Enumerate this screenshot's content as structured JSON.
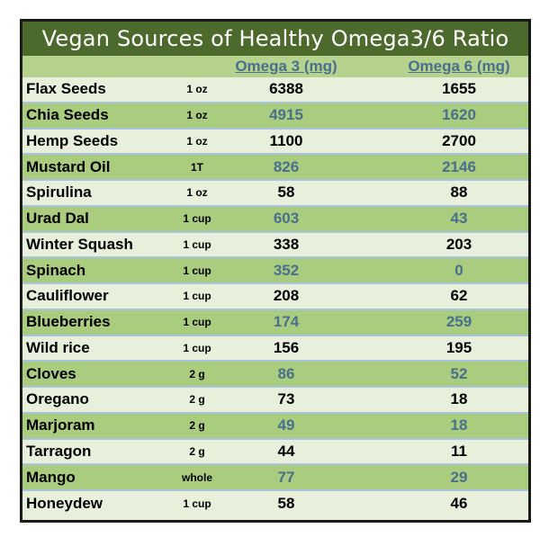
{
  "title": "Vegan Sources of Healthy Omega3/6 Ratio",
  "columns": {
    "unit": "",
    "omega3": "Omega 3 (mg)",
    "omega6": "Omega 6 (mg)"
  },
  "rows": [
    {
      "name": "Flax Seeds",
      "unit": "1 oz",
      "omega3": "6388",
      "omega6": "1655"
    },
    {
      "name": "Chia Seeds",
      "unit": "1 oz",
      "omega3": "4915",
      "omega6": "1620"
    },
    {
      "name": "Hemp Seeds",
      "unit": "1 oz",
      "omega3": "1100",
      "omega6": "2700"
    },
    {
      "name": "Mustard Oil",
      "unit": "1T",
      "omega3": "826",
      "omega6": "2146"
    },
    {
      "name": "Spirulina",
      "unit": "1 oz",
      "omega3": "58",
      "omega6": "88"
    },
    {
      "name": "Urad Dal",
      "unit": "1 cup",
      "omega3": "603",
      "omega6": "43"
    },
    {
      "name": "Winter Squash",
      "unit": "1 cup",
      "omega3": "338",
      "omega6": "203"
    },
    {
      "name": "Spinach",
      "unit": "1 cup",
      "omega3": "352",
      "omega6": "0"
    },
    {
      "name": "Cauliflower",
      "unit": "1 cup",
      "omega3": "208",
      "omega6": "62"
    },
    {
      "name": "Blueberries",
      "unit": "1 cup",
      "omega3": "174",
      "omega6": "259"
    },
    {
      "name": "Wild rice",
      "unit": "1 cup",
      "omega3": "156",
      "omega6": "195"
    },
    {
      "name": "Cloves",
      "unit": "2 g",
      "omega3": "86",
      "omega6": "52"
    },
    {
      "name": "Oregano",
      "unit": "2 g",
      "omega3": "73",
      "omega6": "18"
    },
    {
      "name": "Marjoram",
      "unit": "2 g",
      "omega3": "49",
      "omega6": "18"
    },
    {
      "name": "Tarragon",
      "unit": "2 g",
      "omega3": "44",
      "omega6": "11"
    },
    {
      "name": "Mango",
      "unit": "whole",
      "omega3": "77",
      "omega6": "29"
    },
    {
      "name": "Honeydew",
      "unit": "1 cup",
      "omega3": "58",
      "omega6": "46"
    }
  ],
  "colors": {
    "title_bg": "#4b6a2c",
    "header_bg": "#b6d28f",
    "row_light": "#e8f0dc",
    "row_dark": "#a9cc7f",
    "accent_text": "#4a6f8c"
  }
}
